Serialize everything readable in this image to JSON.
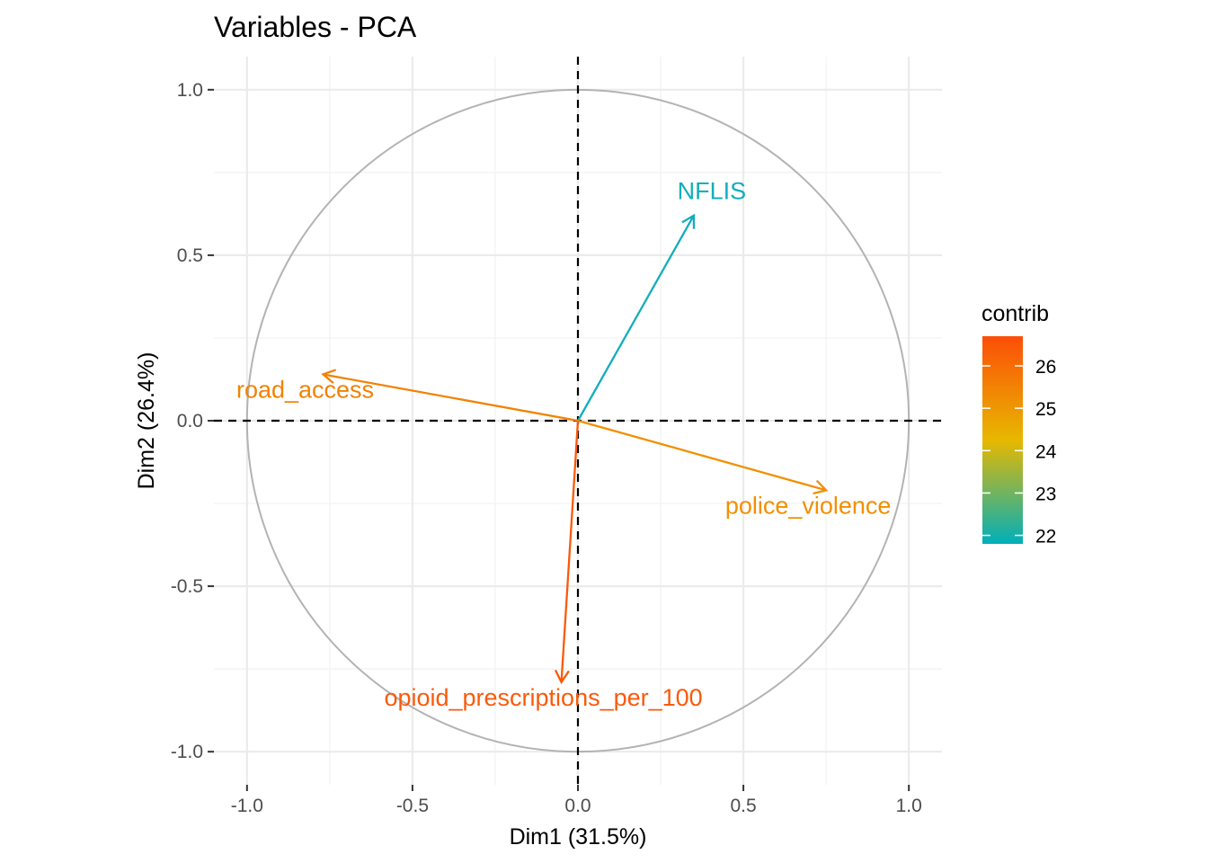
{
  "chart_data": {
    "type": "scatter",
    "subtype": "pca-variable-correlation-circle",
    "title": "Variables - PCA",
    "xlabel": "Dim1 (31.5%)",
    "ylabel": "Dim2 (26.4%)",
    "xlim": [
      -1.1,
      1.1
    ],
    "ylim": [
      -1.1,
      1.1
    ],
    "x_ticks": [
      -1.0,
      -0.5,
      0.0,
      0.5,
      1.0
    ],
    "y_ticks": [
      -1.0,
      -0.5,
      0.0,
      0.5,
      1.0
    ],
    "x_tick_labels": [
      "-1.0",
      "-0.5",
      "0.0",
      "0.5",
      "1.0"
    ],
    "y_tick_labels": [
      "-1.0",
      "-0.5",
      "0.0",
      "0.5",
      "1.0"
    ],
    "grid": true,
    "unit_circle": true,
    "reference_lines": [
      0,
      0
    ],
    "variables": [
      {
        "name": "NFLIS",
        "x": 0.35,
        "y": 0.62,
        "contrib": 21.9,
        "color": "#12AEBB"
      },
      {
        "name": "road_access",
        "x": -0.77,
        "y": 0.14,
        "contrib": 25.7,
        "color": "#F28203"
      },
      {
        "name": "police_violence",
        "x": 0.75,
        "y": -0.21,
        "contrib": 25.3,
        "color": "#F28F00"
      },
      {
        "name": "opioid_prescriptions_per_100",
        "x": -0.05,
        "y": -0.79,
        "contrib": 26.6,
        "color": "#FA5A0A"
      }
    ],
    "legend": {
      "title": "contrib",
      "placement": "right",
      "range": [
        21.8,
        26.7
      ],
      "ticks": [
        22,
        23,
        24,
        25,
        26
      ],
      "tick_labels": [
        "22",
        "23",
        "24",
        "25",
        "26"
      ],
      "gradient": [
        "#00AFBB",
        "#E7B800",
        "#FC4E07"
      ]
    }
  }
}
